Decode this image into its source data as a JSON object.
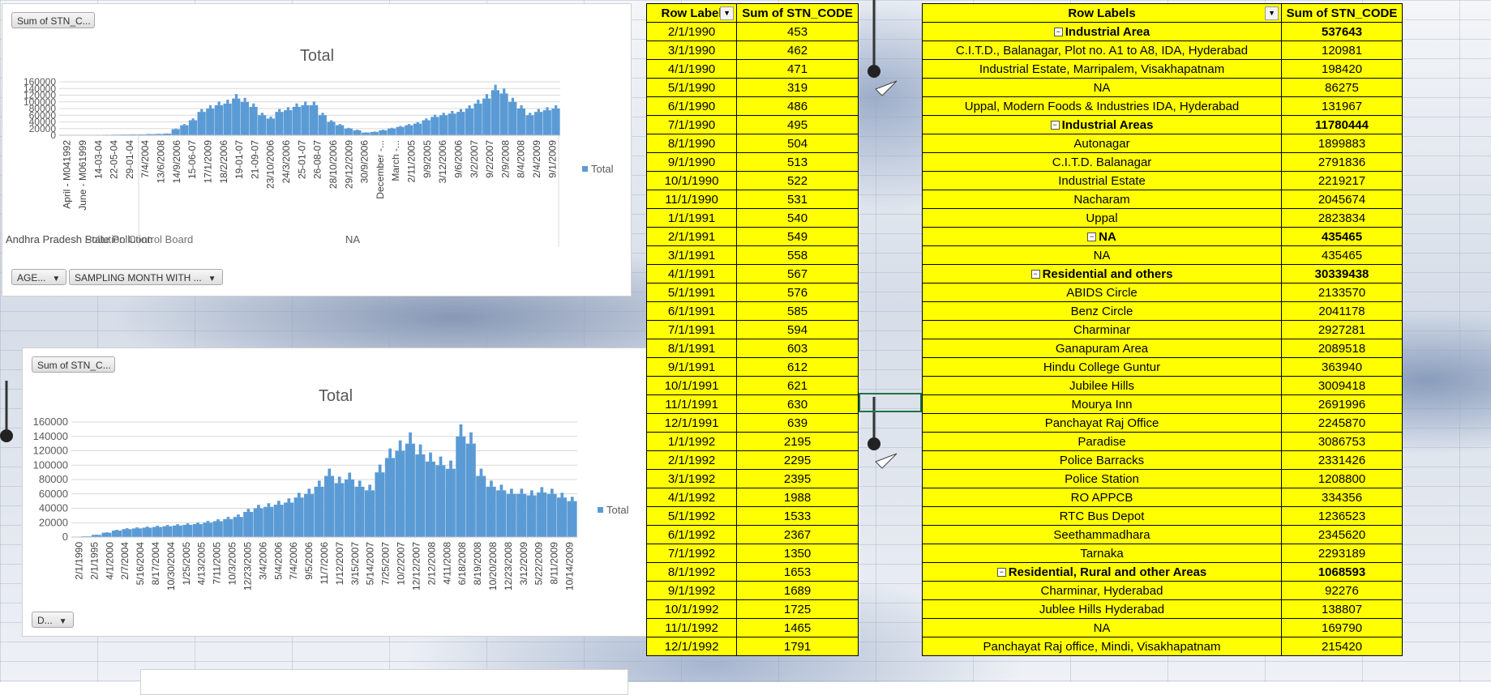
{
  "chart1": {
    "field_button": "Sum of STN_C...",
    "title": "Total",
    "legend": "Total",
    "y_ticks": [
      "160000",
      "140000",
      "120000",
      "100000",
      "80000",
      "60000",
      "40000",
      "20000",
      "0"
    ],
    "x_labels": [
      "April - M041992",
      "June - M061999",
      "14-03-04",
      "22-05-04",
      "29-01-04",
      "7/4/2004",
      "13/6/2008",
      "14/9/2006",
      "15-06-07",
      "17/1/2009",
      "18/2/2006",
      "19-01-07",
      "21-09-07",
      "23/10/2006",
      "24/3/2006",
      "25-01-07",
      "26-08-07",
      "28/10/2006",
      "29/12/2009",
      "30/9/2006",
      "December -...",
      "March -...",
      "2/11/2005",
      "9/9/2005",
      "3/12/2006",
      "9/6/2006",
      "3/2/2007",
      "9/2/2007",
      "2/9/2008",
      "8/4/2008",
      "2/4/2009",
      "9/1/2009"
    ],
    "group_labels": [
      "Andhra Pradesh State Pollution",
      "Andhra Pradesh Pollution Control Board",
      "NA"
    ],
    "group_label_line2": "Control Board",
    "filter_buttons": [
      "AGE...",
      "SAMPLING MONTH WITH ..."
    ]
  },
  "chart2": {
    "field_button": "Sum of STN_C...",
    "title": "Total",
    "legend": "Total",
    "y_ticks": [
      "160000",
      "140000",
      "120000",
      "100000",
      "80000",
      "60000",
      "40000",
      "20000",
      "0"
    ],
    "x_labels": [
      "2/1/1990",
      "2/1/1995",
      "4/1/2000",
      "2/7/2004",
      "5/16/2004",
      "8/17/2004",
      "10/30/2004",
      "1/25/2005",
      "4/13/2005",
      "7/11/2005",
      "10/3/2005",
      "12/23/2005",
      "3/4/2006",
      "5/4/2006",
      "7/4/2006",
      "9/5/2006",
      "11/7/2006",
      "1/12/2007",
      "3/15/2007",
      "5/14/2007",
      "7/25/2007",
      "10/2/2007",
      "12/12/2007",
      "2/12/2008",
      "4/11/2008",
      "6/18/2008",
      "8/19/2008",
      "10/20/2008",
      "12/23/2008",
      "3/12/2009",
      "5/22/2009",
      "8/11/2009",
      "10/14/2009"
    ],
    "filter_buttons": [
      "D..."
    ]
  },
  "chart_data": [
    {
      "type": "bar",
      "title": "Total",
      "xlabel": "",
      "ylabel": "",
      "ylim": [
        0,
        160000
      ],
      "legend": "right",
      "grid": true,
      "series": [
        {
          "name": "Total",
          "values": [
            500,
            700,
            900,
            1000,
            1200,
            1500,
            1800,
            2200,
            2400,
            2500,
            3500,
            4000,
            5000,
            18000,
            30000,
            45000,
            70000,
            80000,
            90000,
            95000,
            110000,
            100000,
            85000,
            60000,
            50000,
            70000,
            75000,
            85000,
            90000,
            90000,
            60000,
            40000,
            30000,
            20000,
            15000,
            8000,
            10000,
            15000,
            20000,
            25000,
            30000,
            35000,
            45000,
            55000,
            60000,
            65000,
            70000,
            80000,
            95000,
            110000,
            135000,
            125000,
            100000,
            80000,
            60000,
            70000,
            75000,
            80000
          ]
        }
      ]
    },
    {
      "type": "bar",
      "title": "Total",
      "xlabel": "",
      "ylabel": "",
      "ylim": [
        0,
        160000
      ],
      "legend": "right",
      "grid": true,
      "series": [
        {
          "name": "Total",
          "values": [
            500,
            1000,
            3000,
            6000,
            9000,
            11000,
            12000,
            13000,
            14000,
            15000,
            16000,
            17000,
            18000,
            20000,
            22000,
            25000,
            28000,
            35000,
            40000,
            42000,
            45000,
            48000,
            55000,
            60000,
            70000,
            85000,
            75000,
            80000,
            70000,
            65000,
            90000,
            110000,
            120000,
            130000,
            115000,
            105000,
            100000,
            95000,
            140000,
            130000,
            85000,
            70000,
            65000,
            60000,
            60000,
            58000,
            62000,
            60000,
            55000,
            50000
          ]
        }
      ]
    }
  ],
  "pivot1": {
    "header_label": "Row Label",
    "header_sum": "Sum of STN_CODE",
    "rows": [
      [
        "2/1/1990",
        "453"
      ],
      [
        "3/1/1990",
        "462"
      ],
      [
        "4/1/1990",
        "471"
      ],
      [
        "5/1/1990",
        "319"
      ],
      [
        "6/1/1990",
        "486"
      ],
      [
        "7/1/1990",
        "495"
      ],
      [
        "8/1/1990",
        "504"
      ],
      [
        "9/1/1990",
        "513"
      ],
      [
        "10/1/1990",
        "522"
      ],
      [
        "11/1/1990",
        "531"
      ],
      [
        "1/1/1991",
        "540"
      ],
      [
        "2/1/1991",
        "549"
      ],
      [
        "3/1/1991",
        "558"
      ],
      [
        "4/1/1991",
        "567"
      ],
      [
        "5/1/1991",
        "576"
      ],
      [
        "6/1/1991",
        "585"
      ],
      [
        "7/1/1991",
        "594"
      ],
      [
        "8/1/1991",
        "603"
      ],
      [
        "9/1/1991",
        "612"
      ],
      [
        "10/1/1991",
        "621"
      ],
      [
        "11/1/1991",
        "630"
      ],
      [
        "12/1/1991",
        "639"
      ],
      [
        "1/1/1992",
        "2195"
      ],
      [
        "2/1/1992",
        "2295"
      ],
      [
        "3/1/1992",
        "2395"
      ],
      [
        "4/1/1992",
        "1988"
      ],
      [
        "5/1/1992",
        "1533"
      ],
      [
        "6/1/1992",
        "2367"
      ],
      [
        "7/1/1992",
        "1350"
      ],
      [
        "8/1/1992",
        "1653"
      ],
      [
        "9/1/1992",
        "1689"
      ],
      [
        "10/1/1992",
        "1725"
      ],
      [
        "11/1/1992",
        "1465"
      ],
      [
        "12/1/1992",
        "1791"
      ]
    ]
  },
  "pivot2": {
    "header_label": "Row Labels",
    "header_sum": "Sum of STN_CODE",
    "rows": [
      {
        "label": "Industrial Area",
        "value": "537643",
        "group": true
      },
      {
        "label": "C.I.T.D., Balanagar, Plot no. A1 to A8, IDA, Hyderabad",
        "value": "120981",
        "group": false
      },
      {
        "label": "Industrial Estate, Marripalem, Visakhapatnam",
        "value": "198420",
        "group": false
      },
      {
        "label": "NA",
        "value": "86275",
        "group": false
      },
      {
        "label": "Uppal, Modern Foods & Industries IDA, Hyderabad",
        "value": "131967",
        "group": false
      },
      {
        "label": "Industrial Areas",
        "value": "11780444",
        "group": true
      },
      {
        "label": "Autonagar",
        "value": "1899883",
        "group": false
      },
      {
        "label": "C.I.T.D. Balanagar",
        "value": "2791836",
        "group": false
      },
      {
        "label": "Industrial Estate",
        "value": "2219217",
        "group": false
      },
      {
        "label": "Nacharam",
        "value": "2045674",
        "group": false
      },
      {
        "label": "Uppal",
        "value": "2823834",
        "group": false
      },
      {
        "label": "NA",
        "value": "435465",
        "group": true
      },
      {
        "label": "NA",
        "value": "435465",
        "group": false
      },
      {
        "label": "Residential and others",
        "value": "30339438",
        "group": true
      },
      {
        "label": "ABIDS Circle",
        "value": "2133570",
        "group": false
      },
      {
        "label": "Benz Circle",
        "value": "2041178",
        "group": false
      },
      {
        "label": "Charminar",
        "value": "2927281",
        "group": false
      },
      {
        "label": "Ganapuram Area",
        "value": "2089518",
        "group": false
      },
      {
        "label": "Hindu College Guntur",
        "value": "363940",
        "group": false
      },
      {
        "label": "Jubilee Hills",
        "value": "3009418",
        "group": false
      },
      {
        "label": "Mourya Inn",
        "value": "2691996",
        "group": false
      },
      {
        "label": "Panchayat Raj Office",
        "value": "2245870",
        "group": false
      },
      {
        "label": "Paradise",
        "value": "3086753",
        "group": false
      },
      {
        "label": "Police Barracks",
        "value": "2331426",
        "group": false
      },
      {
        "label": "Police Station",
        "value": "1208800",
        "group": false
      },
      {
        "label": "RO APPCB",
        "value": "334356",
        "group": false
      },
      {
        "label": "RTC Bus Depot",
        "value": "1236523",
        "group": false
      },
      {
        "label": "Seethammadhara",
        "value": "2345620",
        "group": false
      },
      {
        "label": "Tarnaka",
        "value": "2293189",
        "group": false
      },
      {
        "label": "Residential, Rural and other Areas",
        "value": "1068593",
        "group": true
      },
      {
        "label": "Charminar, Hyderabad",
        "value": "92276",
        "group": false
      },
      {
        "label": "Jublee Hills Hyderabad",
        "value": "138807",
        "group": false
      },
      {
        "label": "NA",
        "value": "169790",
        "group": false
      },
      {
        "label": "Panchayat Raj office, Mindi, Visakhapatnam",
        "value": "215420",
        "group": false
      }
    ]
  },
  "colors": {
    "bar": "#5b9bd5",
    "pivot_fill": "#ffff00",
    "grid": "#d9d9d9",
    "selection": "#217346"
  }
}
